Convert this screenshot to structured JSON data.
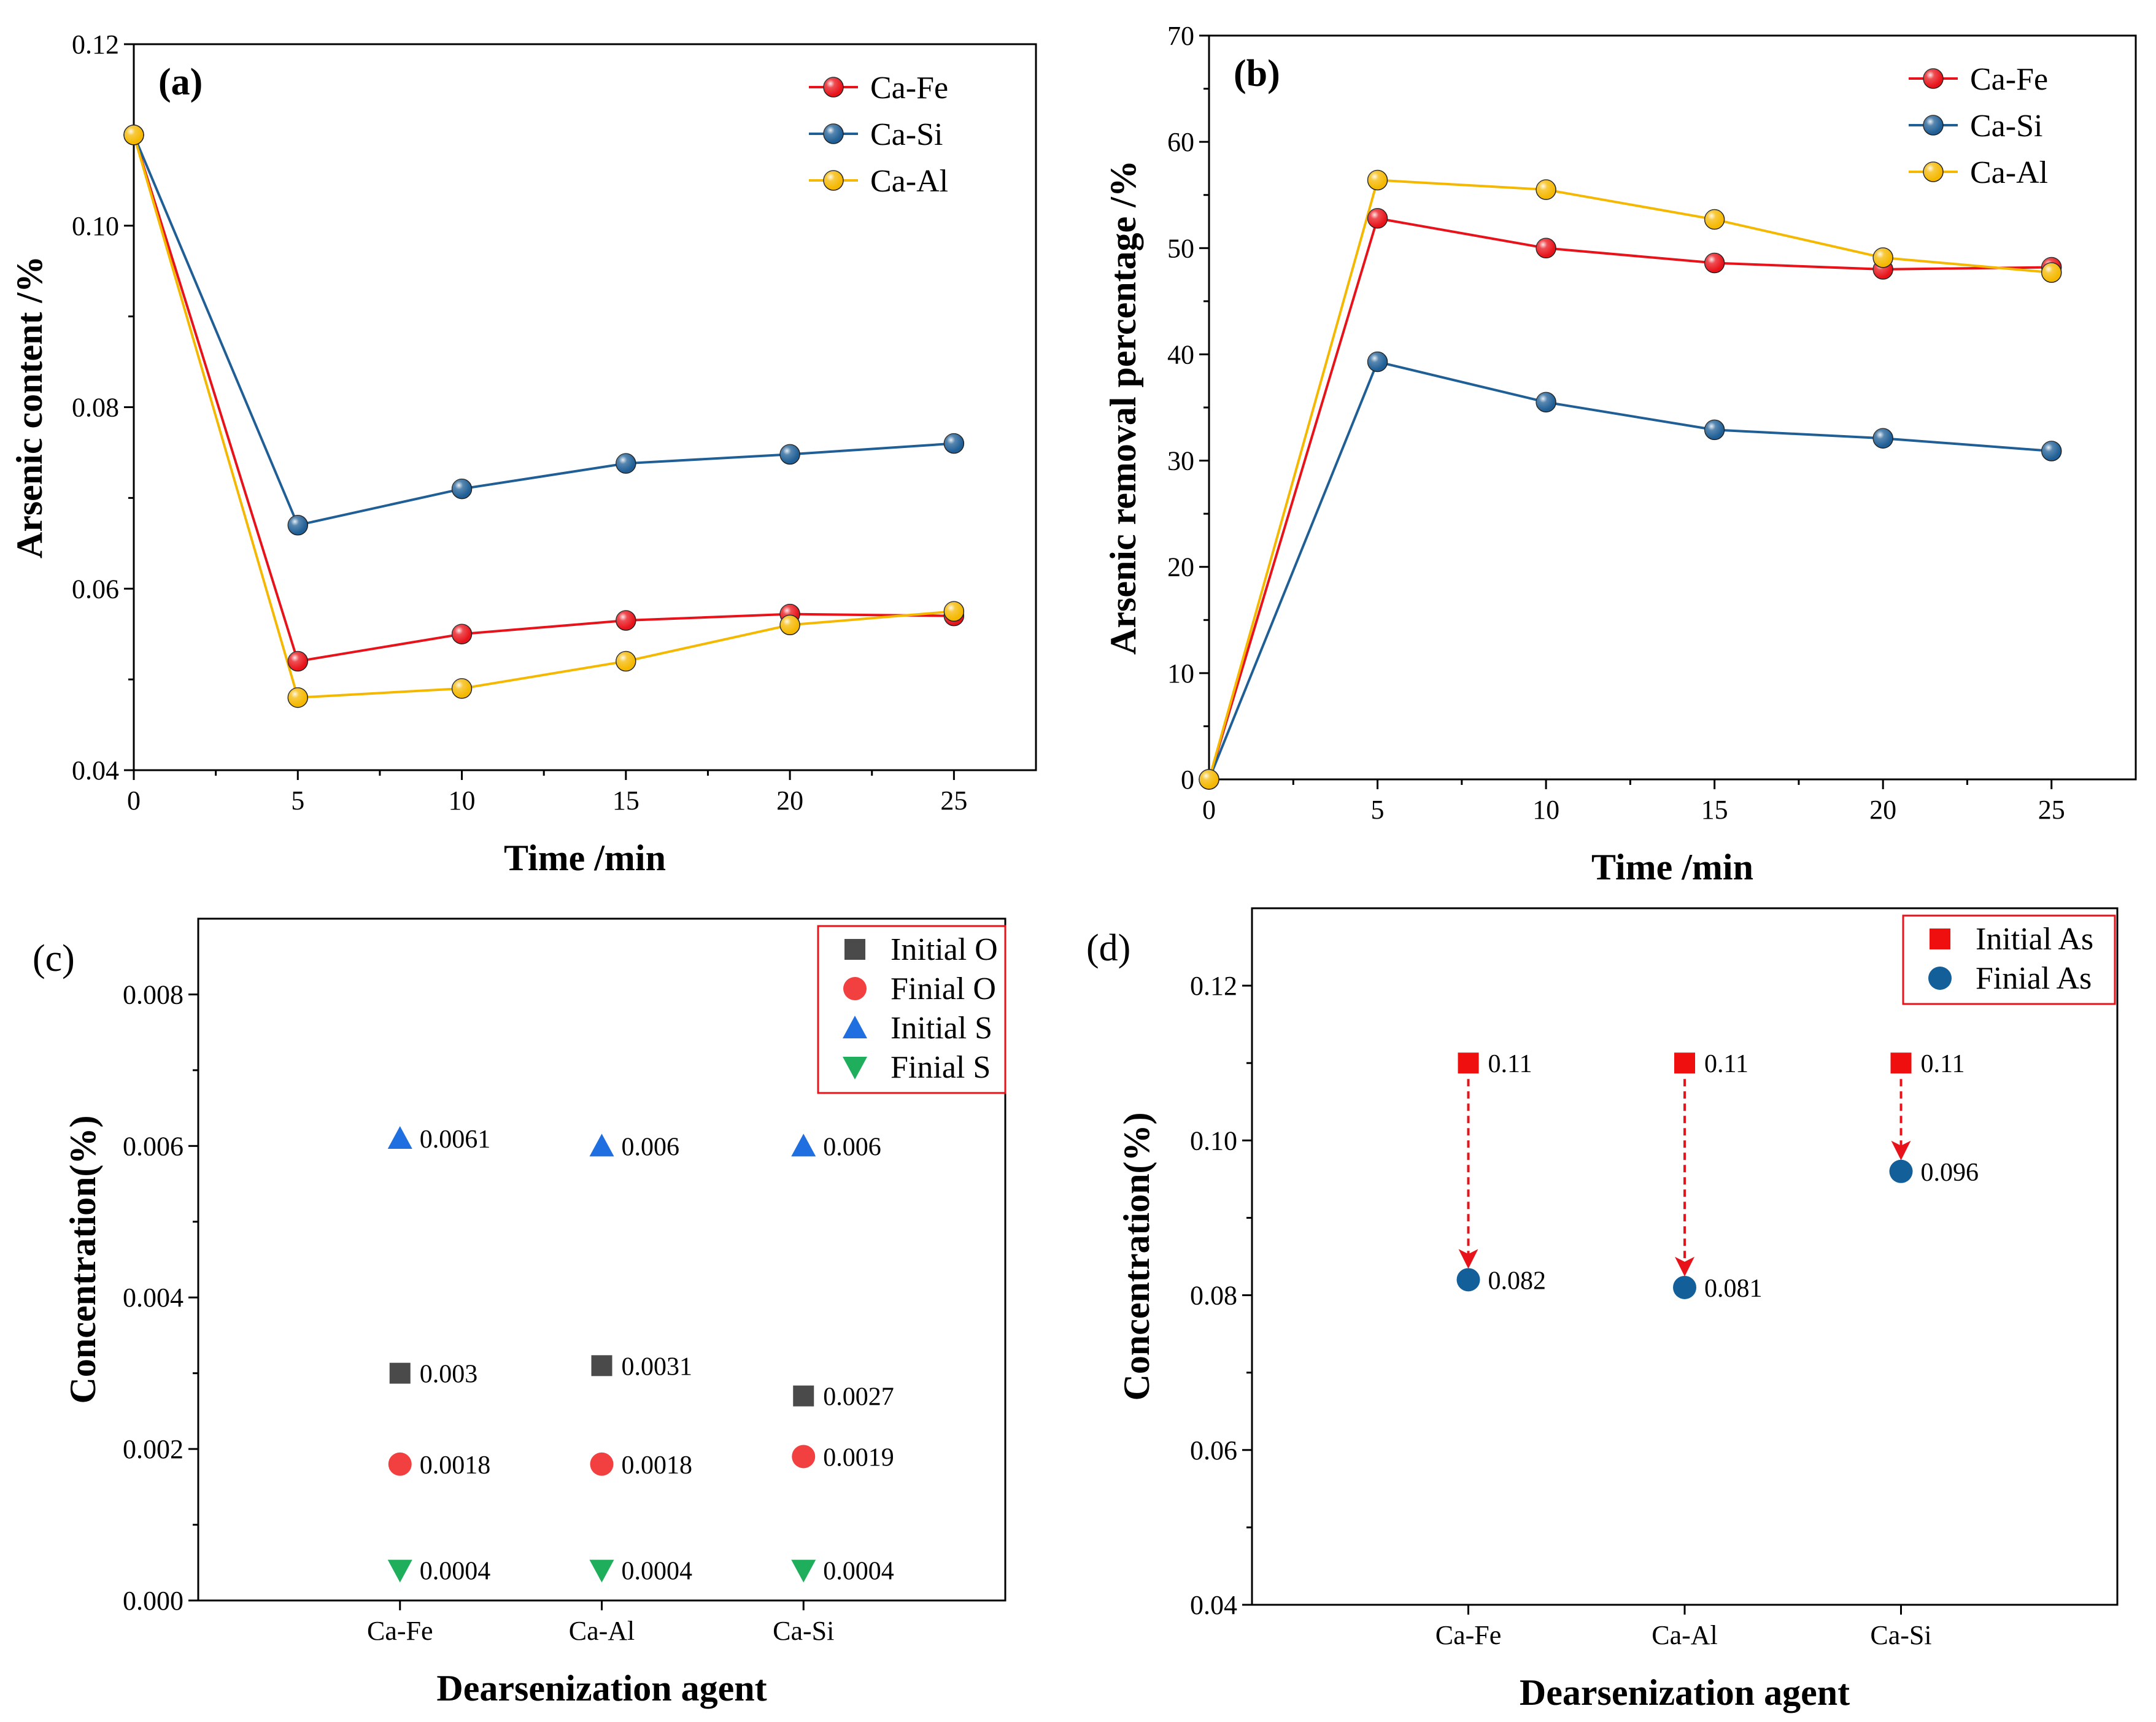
{
  "chart_data": [
    {
      "panel": "(a)",
      "type": "line",
      "xlabel": "Time /min",
      "ylabel": "Arsenic content /%",
      "xlim": [
        0,
        27.5
      ],
      "ylim": [
        0.04,
        0.12
      ],
      "xticks": [
        0,
        5,
        10,
        15,
        20,
        25
      ],
      "yticks": [
        0.04,
        0.06,
        0.08,
        0.1,
        0.12
      ],
      "ytick_labels": [
        "0.04",
        "0.06",
        "0.08",
        "0.10",
        "0.12"
      ],
      "x": [
        0,
        5,
        10,
        15,
        20,
        25
      ],
      "series": [
        {
          "name": "Ca-Fe",
          "color": "#e8131a",
          "values": [
            0.11,
            0.052,
            0.055,
            0.0565,
            0.0572,
            0.057
          ]
        },
        {
          "name": "Ca-Si",
          "color": "#1f5f96",
          "values": [
            0.11,
            0.067,
            0.071,
            0.0738,
            0.0748,
            0.076
          ]
        },
        {
          "name": "Ca-Al",
          "color": "#f5b800",
          "values": [
            0.11,
            0.048,
            0.049,
            0.052,
            0.056,
            0.0575
          ]
        }
      ],
      "legend_position": "top-right"
    },
    {
      "panel": "(b)",
      "type": "line",
      "xlabel": "Time /min",
      "ylabel": "Arsenic removal percentage /%",
      "xlim": [
        0,
        27.5
      ],
      "ylim": [
        0,
        70
      ],
      "xticks": [
        0,
        5,
        10,
        15,
        20,
        25
      ],
      "yticks": [
        0,
        10,
        20,
        30,
        40,
        50,
        60,
        70
      ],
      "ytick_labels": [
        "0",
        "10",
        "20",
        "30",
        "40",
        "50",
        "60",
        "70"
      ],
      "x": [
        0,
        5,
        10,
        15,
        20,
        25
      ],
      "series": [
        {
          "name": "Ca-Fe",
          "color": "#e8131a",
          "values": [
            0,
            52.8,
            50.0,
            48.6,
            48.0,
            48.2
          ]
        },
        {
          "name": "Ca-Si",
          "color": "#1f5f96",
          "values": [
            0,
            39.3,
            35.5,
            32.9,
            32.1,
            30.9
          ]
        },
        {
          "name": "Ca-Al",
          "color": "#f5b800",
          "values": [
            0,
            56.4,
            55.5,
            52.7,
            49.1,
            47.7
          ]
        }
      ],
      "legend_position": "top-right"
    },
    {
      "panel": "(c)",
      "type": "scatter",
      "xlabel": "Dearsenization agent",
      "ylabel": "Concentration(%)",
      "ylim": [
        0,
        0.009
      ],
      "yticks": [
        0,
        0.002,
        0.004,
        0.006,
        0.008
      ],
      "ytick_labels": [
        "0.000",
        "0.002",
        "0.004",
        "0.006",
        "0.008"
      ],
      "categories": [
        "Ca-Fe",
        "Ca-Al",
        "Ca-Si"
      ],
      "series": [
        {
          "name": "Initial O",
          "marker": "square",
          "color": "#4a4a4a",
          "values": [
            0.003,
            0.0031,
            0.0027
          ],
          "labels": [
            "0.003",
            "0.0031",
            "0.0027"
          ]
        },
        {
          "name": "Finial O",
          "marker": "circle",
          "color": "#f24040",
          "values": [
            0.0018,
            0.0018,
            0.0019
          ],
          "labels": [
            "0.0018",
            "0.0018",
            "0.0019"
          ]
        },
        {
          "name": "Initial S",
          "marker": "triangle-up",
          "color": "#1f6fe0",
          "values": [
            0.0061,
            0.006,
            0.006
          ],
          "labels": [
            "0.0061",
            "0.006",
            "0.006"
          ]
        },
        {
          "name": "Finial S",
          "marker": "triangle-down",
          "color": "#1fae5c",
          "values": [
            0.0004,
            0.0004,
            0.0004
          ],
          "labels": [
            "0.0004",
            "0.0004",
            "0.0004"
          ]
        }
      ],
      "legend_position": "top-right",
      "legend_border_color": "#e8131a"
    },
    {
      "panel": "(d)",
      "type": "scatter",
      "xlabel": "Dearsenization agent",
      "ylabel": "Concentration(%)",
      "ylim": [
        0.04,
        0.13
      ],
      "yticks": [
        0.04,
        0.06,
        0.08,
        0.1,
        0.12
      ],
      "ytick_labels": [
        "0.04",
        "0.06",
        "0.08",
        "0.10",
        "0.12"
      ],
      "categories": [
        "Ca-Fe",
        "Ca-Al",
        "Ca-Si"
      ],
      "series": [
        {
          "name": "Initial As",
          "marker": "square",
          "color": "#f00f0f",
          "values": [
            0.11,
            0.11,
            0.11
          ],
          "labels": [
            "0.11",
            "0.11",
            "0.11"
          ]
        },
        {
          "name": "Finial As",
          "marker": "circle",
          "color": "#135f99",
          "values": [
            0.082,
            0.081,
            0.096
          ],
          "labels": [
            "0.082",
            "0.081",
            "0.096"
          ]
        }
      ],
      "arrows": "dashed red arrows from Initial As to Finial As for each agent",
      "legend_position": "top-right",
      "legend_border_color": "#e8131a"
    }
  ]
}
